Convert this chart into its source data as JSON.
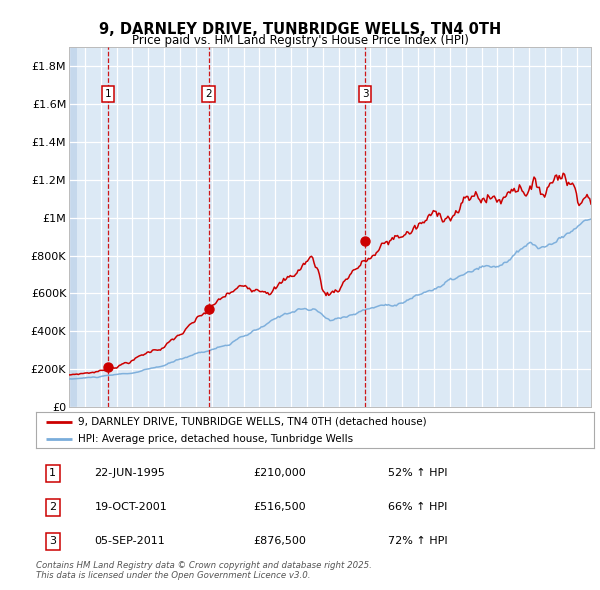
{
  "title": "9, DARNLEY DRIVE, TUNBRIDGE WELLS, TN4 0TH",
  "subtitle": "Price paid vs. HM Land Registry's House Price Index (HPI)",
  "legend_line1": "9, DARNLEY DRIVE, TUNBRIDGE WELLS, TN4 0TH (detached house)",
  "legend_line2": "HPI: Average price, detached house, Tunbridge Wells",
  "sale_color": "#cc0000",
  "hpi_color": "#7aaddb",
  "sale_events": [
    {
      "num": 1,
      "date_yr": 1995.47,
      "price": 210000,
      "pct": "52%",
      "label": "22-JUN-1995",
      "price_label": "£210,000"
    },
    {
      "num": 2,
      "date_yr": 2001.8,
      "price": 516500,
      "pct": "66%",
      "label": "19-OCT-2001",
      "price_label": "£516,500"
    },
    {
      "num": 3,
      "date_yr": 2011.67,
      "price": 876500,
      "pct": "72%",
      "label": "05-SEP-2011",
      "price_label": "£876,500"
    }
  ],
  "ylim": [
    0,
    1900000
  ],
  "yticks": [
    0,
    200000,
    400000,
    600000,
    800000,
    1000000,
    1200000,
    1400000,
    1600000,
    1800000
  ],
  "ytick_labels": [
    "£0",
    "£200K",
    "£400K",
    "£600K",
    "£800K",
    "£1M",
    "£1.2M",
    "£1.4M",
    "£1.6M",
    "£1.8M"
  ],
  "xstart": 1993.0,
  "xend": 2025.9,
  "footnote": "Contains HM Land Registry data © Crown copyright and database right 2025.\nThis data is licensed under the Open Government Licence v3.0.",
  "background_color": "#dce9f5",
  "hatch_color": "#c5d8ec"
}
